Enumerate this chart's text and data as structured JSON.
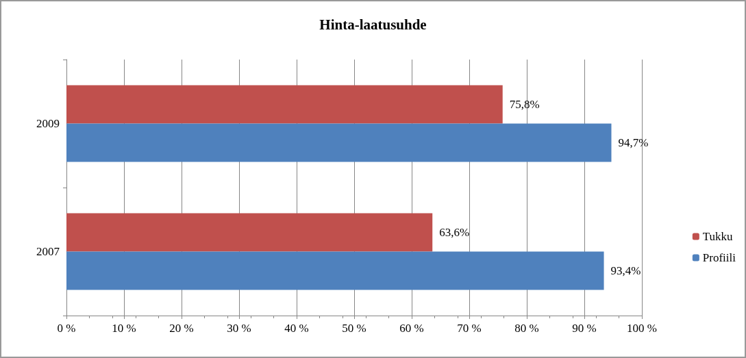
{
  "chart_data": {
    "type": "bar",
    "orientation": "horizontal",
    "title": "Hinta-laatusuhde",
    "categories": [
      "2009",
      "2007"
    ],
    "series": [
      {
        "name": "Tukku",
        "color": "#c0504d",
        "values": [
          75.8,
          63.6
        ],
        "value_labels": [
          "75,8%",
          "63,6%"
        ]
      },
      {
        "name": "Profiili",
        "color": "#4f81bd",
        "values": [
          94.7,
          93.4
        ],
        "value_labels": [
          "94,7%",
          "93,4%"
        ]
      }
    ],
    "xlim": [
      0,
      100
    ],
    "xticks": [
      {
        "value": 0,
        "label": "0 %"
      },
      {
        "value": 10,
        "label": "10 %"
      },
      {
        "value": 20,
        "label": "20 %"
      },
      {
        "value": 30,
        "label": "30 %"
      },
      {
        "value": 40,
        "label": "40 %"
      },
      {
        "value": 50,
        "label": "50 %"
      },
      {
        "value": 60,
        "label": "60 %"
      },
      {
        "value": 70,
        "label": "70 %"
      },
      {
        "value": 80,
        "label": "80 %"
      },
      {
        "value": 90,
        "label": "90 %"
      },
      {
        "value": 100,
        "label": "100 %"
      }
    ],
    "grid": "x",
    "legend": "right"
  }
}
